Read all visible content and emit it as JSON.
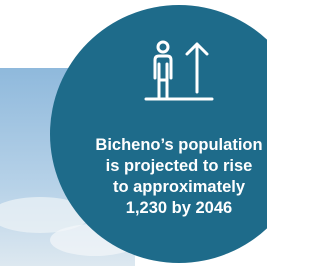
{
  "callout": {
    "lines": [
      "Bicheno’s population",
      "is projected to rise",
      "to approximately",
      "1,230 by 2046"
    ]
  }
}
